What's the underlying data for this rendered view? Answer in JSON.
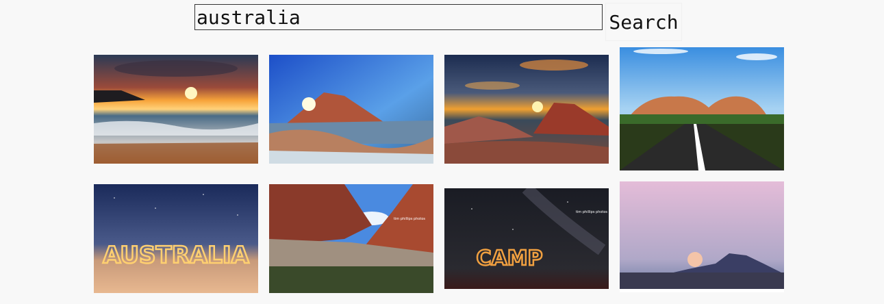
{
  "search": {
    "query": "australia",
    "button_label": "Search"
  },
  "results": [
    {
      "name": "sunset-ocean-waves-photo"
    },
    {
      "name": "sunburst-coastal-rock-photo"
    },
    {
      "name": "sunset-rock-outcrop-photo"
    },
    {
      "name": "desert-road-rock-domes-photo"
    },
    {
      "name": "light-painting-australia-photo",
      "light_text": "AUSTRALIA"
    },
    {
      "name": "red-canyon-waterhole-photo",
      "watermark": "tim phillips photos"
    },
    {
      "name": "light-painting-camp-photo",
      "light_text": "CAMP",
      "watermark": "tim phillips photos"
    },
    {
      "name": "moonrise-over-rocks-photo"
    }
  ]
}
